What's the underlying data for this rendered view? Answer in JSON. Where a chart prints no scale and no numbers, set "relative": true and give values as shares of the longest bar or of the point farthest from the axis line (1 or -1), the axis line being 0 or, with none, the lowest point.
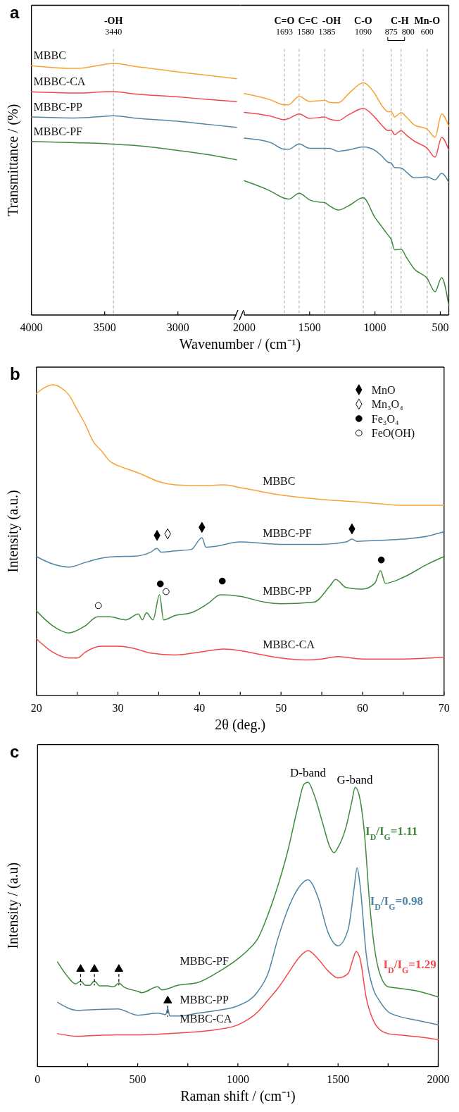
{
  "chart_data": [
    {
      "type": "line",
      "title": "a",
      "ylabel": "Transmittance / (%)",
      "relative": true,
      "xlim": [
        4000,
        2600
      ],
      "xticks": [
        4000,
        3500,
        3000
      ],
      "x": [
        4000,
        3700,
        3500,
        3440,
        3300,
        3000,
        2800,
        2600
      ],
      "series": [
        {
          "name": "MBBC",
          "color": "#f7a233",
          "values": [
            0.991,
            0.98,
            0.996,
            1.0,
            0.989,
            0.966,
            0.953,
            0.939
          ]
        },
        {
          "name": "MBBC-CA",
          "color": "#f2484a",
          "values": [
            0.887,
            0.882,
            0.887,
            0.888,
            0.879,
            0.867,
            0.857,
            0.848
          ]
        },
        {
          "name": "MBBC-PP",
          "color": "#4f86a6",
          "values": [
            0.787,
            0.783,
            0.79,
            0.792,
            0.783,
            0.77,
            0.758,
            0.746
          ]
        },
        {
          "name": "MBBC-PF",
          "color": "#3f8a3c",
          "values": [
            0.69,
            0.685,
            0.681,
            0.679,
            0.674,
            0.654,
            0.638,
            0.617
          ]
        }
      ],
      "ref_lines": [
        {
          "axis": "x",
          "value": 3440,
          "label": "3440",
          "color": "#a6a6a6",
          "line_style": "dashed"
        }
      ],
      "annotations": [
        "-OH"
      ]
    },
    {
      "type": "line",
      "xlabel": "Wavenumber / (cm⁻¹)",
      "relative": true,
      "xlim": [
        2000,
        435
      ],
      "xticks": [
        2000,
        1500,
        1000,
        500
      ],
      "x": [
        2000,
        1800,
        1693,
        1660,
        1580,
        1500,
        1420,
        1385,
        1350,
        1280,
        1200,
        1090,
        1000,
        950,
        900,
        875,
        850,
        800,
        760,
        700,
        600,
        540,
        490,
        435
      ],
      "series": [
        {
          "color": "#f7a233",
          "values": [
            0.954,
            0.927,
            0.905,
            0.906,
            0.942,
            0.92,
            0.923,
            0.925,
            0.916,
            0.914,
            0.954,
            1.0,
            0.952,
            0.904,
            0.876,
            0.876,
            0.853,
            0.872,
            0.853,
            0.819,
            0.8,
            0.766,
            0.866,
            0.813
          ]
        },
        {
          "color": "#f2484a",
          "values": [
            0.873,
            0.857,
            0.841,
            0.846,
            0.866,
            0.847,
            0.851,
            0.853,
            0.844,
            0.838,
            0.863,
            0.889,
            0.851,
            0.819,
            0.794,
            0.796,
            0.777,
            0.794,
            0.775,
            0.749,
            0.718,
            0.68,
            0.765,
            0.711
          ]
        },
        {
          "color": "#4f86a6",
          "values": [
            0.762,
            0.743,
            0.714,
            0.714,
            0.737,
            0.718,
            0.718,
            0.718,
            0.718,
            0.705,
            0.711,
            0.724,
            0.709,
            0.686,
            0.658,
            0.654,
            0.635,
            0.633,
            0.616,
            0.591,
            0.595,
            0.582,
            0.61,
            0.572
          ]
        },
        {
          "color": "#3f8a3c",
          "values": [
            0.578,
            0.534,
            0.503,
            0.499,
            0.524,
            0.496,
            0.486,
            0.484,
            0.471,
            0.452,
            0.471,
            0.505,
            0.42,
            0.382,
            0.344,
            0.325,
            0.281,
            0.284,
            0.249,
            0.199,
            0.157,
            0.1,
            0.161,
            0.041
          ]
        }
      ],
      "ref_lines": [
        {
          "axis": "x",
          "value": 1693,
          "label": "1693",
          "color": "#a6a6a6",
          "line_style": "dashed"
        },
        {
          "axis": "x",
          "value": 1580,
          "label": "1580",
          "color": "#a6a6a6",
          "line_style": "dashed"
        },
        {
          "axis": "x",
          "value": 1385,
          "label": "1385",
          "color": "#a6a6a6",
          "line_style": "dashed"
        },
        {
          "axis": "x",
          "value": 1090,
          "label": "1090",
          "color": "#a6a6a6",
          "line_style": "dashed"
        },
        {
          "axis": "x",
          "value": 875,
          "label": "875",
          "color": "#a6a6a6",
          "line_style": "dashed"
        },
        {
          "axis": "x",
          "value": 800,
          "label": "800",
          "color": "#a6a6a6",
          "line_style": "dashed"
        },
        {
          "axis": "x",
          "value": 600,
          "label": "600",
          "color": "#a6a6a6",
          "line_style": "dashed"
        }
      ],
      "annotations": [
        "C=O",
        "C=C",
        "-OH",
        "C-O",
        "C-H",
        "Mn-O"
      ]
    },
    {
      "type": "line",
      "title": "b",
      "xlabel": "2θ (deg.)",
      "ylabel": "Intensity (a.u.)",
      "relative": true,
      "xlim": [
        20,
        70
      ],
      "xticks": [
        20,
        {
          "value": 25,
          "label": null
        },
        30,
        {
          "value": 35,
          "label": null
        },
        40,
        {
          "value": 45,
          "label": null
        },
        50,
        {
          "value": 55,
          "label": null
        },
        60,
        {
          "value": 65,
          "label": null
        },
        70
      ],
      "legend": "top right",
      "series": [
        {
          "name": "MBBC",
          "color": "#f7a233",
          "x": [
            20,
            21,
            22,
            23,
            24,
            25,
            26,
            27,
            28,
            29,
            30,
            31,
            32,
            33,
            35,
            37,
            40,
            43,
            45,
            47,
            50,
            55,
            60,
            65,
            70
          ],
          "values": [
            0.972,
            0.991,
            1.0,
            0.991,
            0.967,
            0.92,
            0.872,
            0.816,
            0.787,
            0.754,
            0.74,
            0.73,
            0.721,
            0.711,
            0.688,
            0.678,
            0.675,
            0.678,
            0.669,
            0.659,
            0.645,
            0.631,
            0.622,
            0.612,
            0.612
          ]
        },
        {
          "name": "MBBC-PF",
          "color": "#4f86a6",
          "x": [
            20,
            22,
            24,
            26,
            28,
            30,
            32,
            34,
            34.8,
            35.3,
            37,
            39,
            40.3,
            40.8,
            42,
            45,
            48,
            50,
            55,
            58,
            58.7,
            59.3,
            62,
            65,
            68,
            70
          ],
          "values": [
            0.447,
            0.423,
            0.413,
            0.428,
            0.442,
            0.447,
            0.448,
            0.461,
            0.473,
            0.461,
            0.465,
            0.47,
            0.508,
            0.477,
            0.48,
            0.494,
            0.489,
            0.486,
            0.486,
            0.494,
            0.503,
            0.496,
            0.499,
            0.503,
            0.513,
            0.527
          ]
        },
        {
          "name": "MBBC-PP",
          "color": "#3f8a3c",
          "x": [
            20,
            22,
            24,
            26,
            27.5,
            29,
            31,
            32.5,
            33,
            33.5,
            34.3,
            35.1,
            35.6,
            37,
            39,
            41,
            42.6,
            45,
            48,
            50,
            54,
            56,
            56.7,
            58,
            60,
            61.5,
            62.2,
            62.8,
            65,
            68,
            70
          ],
          "values": [
            0.272,
            0.224,
            0.201,
            0.224,
            0.253,
            0.253,
            0.243,
            0.262,
            0.243,
            0.266,
            0.243,
            0.324,
            0.243,
            0.257,
            0.266,
            0.295,
            0.324,
            0.319,
            0.3,
            0.295,
            0.3,
            0.352,
            0.373,
            0.347,
            0.342,
            0.361,
            0.401,
            0.361,
            0.38,
            0.423,
            0.447
          ]
        },
        {
          "name": "MBBC-CA",
          "color": "#f2484a",
          "x": [
            20,
            22,
            24,
            25,
            26,
            28,
            30,
            32,
            34,
            37,
            40,
            43,
            45,
            47,
            50,
            53,
            55,
            57,
            60,
            65,
            70
          ],
          "values": [
            0.182,
            0.139,
            0.12,
            0.12,
            0.139,
            0.158,
            0.158,
            0.151,
            0.136,
            0.13,
            0.139,
            0.149,
            0.144,
            0.134,
            0.12,
            0.114,
            0.117,
            0.125,
            0.117,
            0.117,
            0.123
          ]
        },
        {
          "name": "MnO",
          "type": "scatter",
          "marker": "diamond",
          "color": "#000000",
          "x": [
            34.8,
            40.3,
            58.7
          ],
          "values": [
            0.515,
            0.541,
            0.536
          ]
        },
        {
          "name": "Mn₃O₄",
          "type": "scatter",
          "marker": "diamond",
          "color": "#ffffff",
          "x": [
            36.1
          ],
          "values": [
            0.52
          ]
        },
        {
          "name": "Fe₃O₄",
          "type": "scatter",
          "marker": "circle",
          "color": "#000000",
          "x": [
            35.2,
            42.8,
            62.3
          ],
          "values": [
            0.359,
            0.368,
            0.436
          ]
        },
        {
          "name": "FeO(OH)",
          "type": "scatter",
          "marker": "circle",
          "color": "#ffffff",
          "x": [
            27.6,
            35.9
          ],
          "values": [
            0.289,
            0.334
          ]
        }
      ]
    },
    {
      "type": "line",
      "title": "c",
      "xlabel": "Raman shift / (cm⁻¹)",
      "ylabel": "Intensity / (a.u)",
      "relative": true,
      "xlim": [
        0,
        2000
      ],
      "xticks": [
        0,
        {
          "value": 250,
          "label": null
        },
        500,
        {
          "value": 750,
          "label": null
        },
        1000,
        {
          "value": 1250,
          "label": null
        },
        1500,
        {
          "value": 1750,
          "label": null
        },
        2000
      ],
      "series": [
        {
          "name": "MBBC-PF",
          "color": "#3f8a3c",
          "x": [
            100,
            150,
            190,
            215,
            240,
            260,
            284,
            310,
            350,
            380,
            406,
            430,
            500,
            520,
            600,
            620,
            700,
            800,
            900,
            1000,
            1050,
            1100,
            1150,
            1200,
            1250,
            1300,
            1330,
            1350,
            1380,
            1420,
            1460,
            1480,
            1500,
            1540,
            1570,
            1585,
            1600,
            1630,
            1660,
            1700,
            1750,
            1800,
            1900,
            2000
          ],
          "values": [
            0.368,
            0.317,
            0.291,
            0.301,
            0.286,
            0.286,
            0.301,
            0.284,
            0.284,
            0.281,
            0.294,
            0.281,
            0.265,
            0.26,
            0.281,
            0.27,
            0.286,
            0.296,
            0.332,
            0.379,
            0.41,
            0.451,
            0.534,
            0.637,
            0.761,
            0.915,
            0.993,
            1.0,
            0.957,
            0.864,
            0.771,
            0.752,
            0.771,
            0.843,
            0.936,
            0.982,
            0.967,
            0.833,
            0.554,
            0.348,
            0.281,
            0.276,
            0.265,
            0.245
          ]
        },
        {
          "name": "MBBC-PP",
          "color": "#4f86a6",
          "x": [
            100,
            200,
            300,
            400,
            500,
            600,
            640,
            650,
            660,
            700,
            800,
            900,
            1000,
            1100,
            1150,
            1200,
            1250,
            1300,
            1350,
            1400,
            1450,
            1500,
            1550,
            1580,
            1595,
            1610,
            1640,
            1680,
            1700,
            1750,
            1800,
            1900,
            2000
          ],
          "values": [
            0.226,
            0.198,
            0.201,
            0.203,
            0.181,
            0.188,
            0.183,
            0.205,
            0.178,
            0.178,
            0.188,
            0.198,
            0.214,
            0.265,
            0.327,
            0.451,
            0.554,
            0.626,
            0.657,
            0.595,
            0.472,
            0.425,
            0.482,
            0.626,
            0.699,
            0.637,
            0.399,
            0.265,
            0.239,
            0.193,
            0.178,
            0.162,
            0.147
          ]
        },
        {
          "name": "MBBC-CA",
          "color": "#f2484a",
          "x": [
            100,
            200,
            300,
            400,
            500,
            600,
            700,
            800,
            900,
            1000,
            1100,
            1150,
            1200,
            1250,
            1300,
            1350,
            1400,
            1450,
            1500,
            1550,
            1575,
            1590,
            1610,
            1640,
            1680,
            1700,
            1750,
            1800,
            1900,
            2000
          ],
          "values": [
            0.116,
            0.107,
            0.11,
            0.112,
            0.112,
            0.114,
            0.118,
            0.123,
            0.131,
            0.147,
            0.193,
            0.234,
            0.276,
            0.327,
            0.379,
            0.408,
            0.379,
            0.337,
            0.312,
            0.327,
            0.379,
            0.405,
            0.379,
            0.245,
            0.157,
            0.136,
            0.116,
            0.112,
            0.105,
            0.095
          ]
        },
        {
          "type": "scatter",
          "marker": "triangle",
          "color": "#000000",
          "x": [
            215,
            284,
            406,
            650
          ],
          "values": [
            0.343,
            0.343,
            0.343,
            0.232
          ]
        }
      ],
      "annotations": [
        "D-band",
        "G-band",
        "I$_{D}$/I$_{G}$=1.11",
        "I$_{D}$/I$_{G}$=0.98",
        "I$_{D}$/I$_{G}$=1.29"
      ]
    }
  ]
}
